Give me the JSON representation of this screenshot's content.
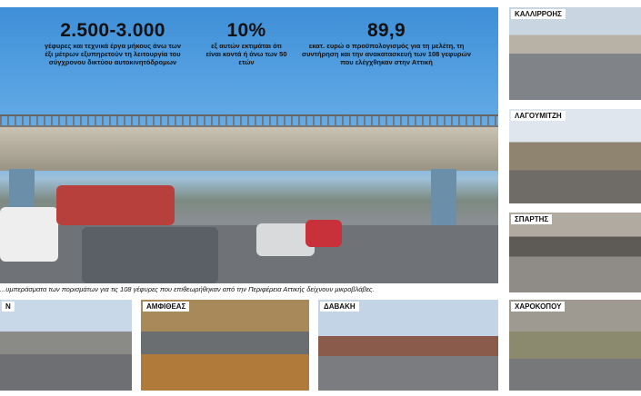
{
  "stats": [
    {
      "value": "2.500-3.000",
      "text": "γέφυρες και τεχνικά έργα μήκους άνω των έξι μέτρων εξυπηρετούν τη λειτουργία του σύγχρονου δικτύου αυτοκινητόδρομων"
    },
    {
      "value": "10%",
      "text": "εξ αυτών εκτιμάται ότι είναι κοντά ή άνω των 50 ετών"
    },
    {
      "value": "89,9",
      "text": "εκατ. ευρώ ο προϋπολογισμός για τη μελέτη, τη συντήρηση και την ανακατασκευή των 108 γεφυρών που ελέγχθηκαν στην Αττική"
    }
  ],
  "caption": "...υμπεράσματα των πορισμάτων για τις 108 γέφυρες που επιθεωρήθηκαν από την Περιφέρεια Αττικής δείχνουν μικροβλάβες.",
  "photos": {
    "kallirrois": "ΚΑΛΛΙΡΡΟΗΣ",
    "lagoumitzi": "ΛΑΓΟΥΜΙΤΖΗ",
    "spartis": "ΣΠΑΡΤΗΣ",
    "partial": "Ν",
    "amfitheas": "ΑΜΦΙΘΕΑΣ",
    "davaki": "ΔΑΒΑΚΗ",
    "charokopou": "ΧΑΡΟΚΟΠΟΥ"
  }
}
